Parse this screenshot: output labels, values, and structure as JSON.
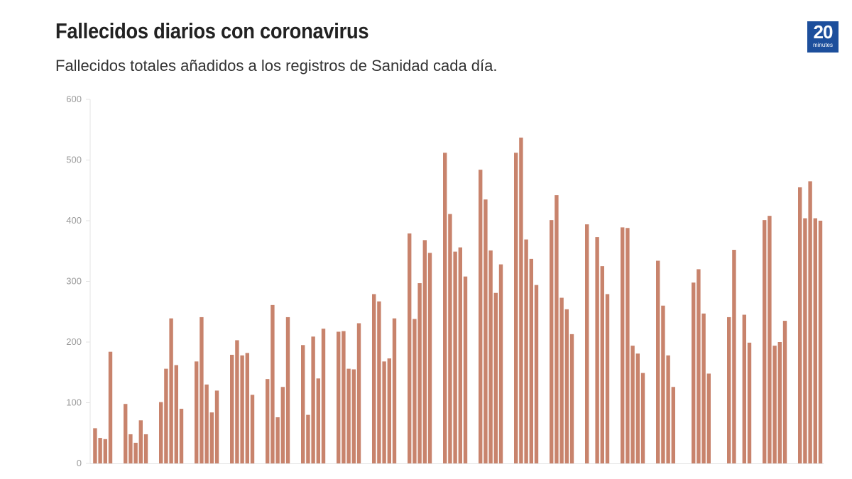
{
  "header": {
    "title": "Fallecidos diarios con coronavirus",
    "subtitle": "Fallecidos totales añadidos a los registros de Sanidad cada día.",
    "logo_number": "20",
    "logo_word": "minutes"
  },
  "colors": {
    "bar": "#c8836c",
    "logo": "#1d4f9c"
  },
  "chart_data": {
    "type": "bar",
    "title": "Fallecidos diarios con coronavirus",
    "subtitle": "Fallecidos totales añadidos a los registros de Sanidad cada día.",
    "xlabel": "",
    "ylabel": "",
    "ylim": [
      0,
      600
    ],
    "yticks": [
      "0",
      "100",
      "200",
      "300",
      "400",
      "500",
      "600"
    ],
    "grid": false,
    "note": "Weekly groups of weekdays; null = no data (weekends / missing)",
    "weeks": [
      [
        null,
        58,
        42,
        40,
        184
      ],
      [
        98,
        48,
        34,
        71,
        48
      ],
      [
        101,
        156,
        239,
        162,
        90
      ],
      [
        168,
        241,
        130,
        84,
        120
      ],
      [
        179,
        203,
        178,
        182,
        113
      ],
      [
        139,
        261,
        76,
        126,
        241
      ],
      [
        195,
        80,
        209,
        140,
        222
      ],
      [
        217,
        218,
        156,
        155,
        231
      ],
      [
        279,
        267,
        168,
        173,
        239
      ],
      [
        379,
        238,
        297,
        368,
        347
      ],
      [
        512,
        411,
        349,
        356,
        308
      ],
      [
        484,
        435,
        351,
        281,
        328
      ],
      [
        512,
        537,
        369,
        337,
        294
      ],
      [
        401,
        442,
        273,
        254,
        213
      ],
      [
        394,
        null,
        373,
        325,
        279
      ],
      [
        389,
        388,
        194,
        181,
        149
      ],
      [
        334,
        260,
        178,
        126,
        null
      ],
      [
        298,
        320,
        247,
        148,
        null
      ],
      [
        241,
        352,
        null,
        245,
        199
      ],
      [
        401,
        408,
        194,
        200,
        235
      ],
      [
        455,
        404,
        465,
        404,
        400
      ]
    ]
  }
}
